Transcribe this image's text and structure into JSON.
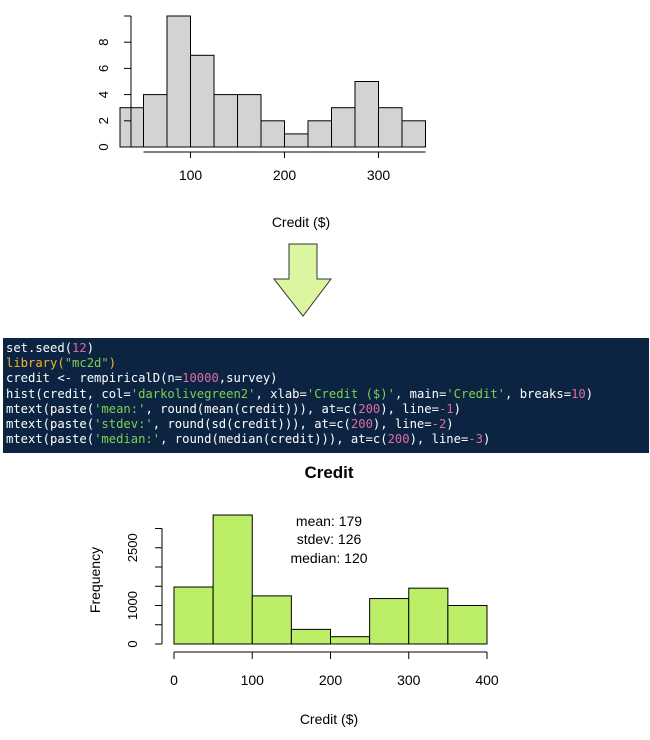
{
  "colors": {
    "top_bar_fill": "#d3d3d3",
    "bottom_bar_fill": "#bcee68",
    "code_background": "#0c2442",
    "code_text": "#ffffff",
    "code_number": "#e06c9f",
    "code_string": "#7fd04f",
    "code_keyword": "#f0b429",
    "arrow_fill": "#dcf5a0"
  },
  "icons": {
    "arrow": "down-arrow-icon"
  },
  "code": [
    [
      {
        "t": "set.seed("
      },
      {
        "t": "12",
        "c": "num"
      },
      {
        "t": ")"
      }
    ],
    [
      {
        "t": "library(",
        "c": "kw"
      },
      {
        "t": "\"mc2d\"",
        "c": "str"
      },
      {
        "t": ")",
        "c": "kw"
      }
    ],
    [
      {
        "t": "credit <- rempiricalD(n="
      },
      {
        "t": "10000",
        "c": "num"
      },
      {
        "t": ",survey)"
      }
    ],
    [
      {
        "t": "hist(credit, col="
      },
      {
        "t": "'darkolivegreen2'",
        "c": "str"
      },
      {
        "t": ", xlab="
      },
      {
        "t": "'Credit ($)'",
        "c": "str"
      },
      {
        "t": ", main="
      },
      {
        "t": "'Credit'",
        "c": "str"
      },
      {
        "t": ", breaks="
      },
      {
        "t": "10",
        "c": "num"
      },
      {
        "t": ")"
      }
    ],
    [
      {
        "t": "mtext(paste("
      },
      {
        "t": "'mean:'",
        "c": "str"
      },
      {
        "t": ", round(mean(credit))), at=c("
      },
      {
        "t": "200",
        "c": "num"
      },
      {
        "t": "), line="
      },
      {
        "t": "-1",
        "c": "num"
      },
      {
        "t": ")"
      }
    ],
    [
      {
        "t": "mtext(paste("
      },
      {
        "t": "'stdev:'",
        "c": "str"
      },
      {
        "t": ", round(sd(credit))), at=c("
      },
      {
        "t": "200",
        "c": "num"
      },
      {
        "t": "), line="
      },
      {
        "t": "-2",
        "c": "num"
      },
      {
        "t": ")"
      }
    ],
    [
      {
        "t": "mtext(paste("
      },
      {
        "t": "'median:'",
        "c": "str"
      },
      {
        "t": ", round(median(credit))), at=c("
      },
      {
        "t": "200",
        "c": "num"
      },
      {
        "t": "), line="
      },
      {
        "t": "-3",
        "c": "num"
      },
      {
        "t": ")"
      }
    ]
  ],
  "chart_data": [
    {
      "type": "bar",
      "title": "",
      "xlabel": "Credit ($)",
      "ylabel": "",
      "bin_edges": [
        25,
        50,
        75,
        100,
        125,
        150,
        175,
        200,
        225,
        250,
        275,
        300,
        325,
        350
      ],
      "values": [
        3,
        4,
        10,
        7,
        4,
        4,
        2,
        1,
        2,
        3,
        5,
        3,
        2
      ],
      "x_ticks": [
        100,
        200,
        300
      ],
      "x_axis_range": [
        50,
        350
      ],
      "y_ticks": [
        0,
        2,
        4,
        6,
        8
      ],
      "ylim": [
        0,
        10
      ],
      "grid": false
    },
    {
      "type": "bar",
      "title": "Credit",
      "xlabel": "Credit ($)",
      "ylabel": "Frequency",
      "bin_edges": [
        0,
        50,
        100,
        150,
        200,
        250,
        300,
        350,
        400
      ],
      "values": [
        1480,
        3350,
        1250,
        380,
        190,
        1180,
        1450,
        1000
      ],
      "x_ticks": [
        0,
        100,
        200,
        300,
        400
      ],
      "y_ticks": [
        0,
        1000,
        2500
      ],
      "y_minor_ticks": [
        500,
        1500,
        2000,
        3000
      ],
      "ylim": [
        0,
        3350
      ],
      "grid": false,
      "annotations": [
        "mean: 179",
        "stdev: 126",
        "median: 120"
      ]
    }
  ]
}
